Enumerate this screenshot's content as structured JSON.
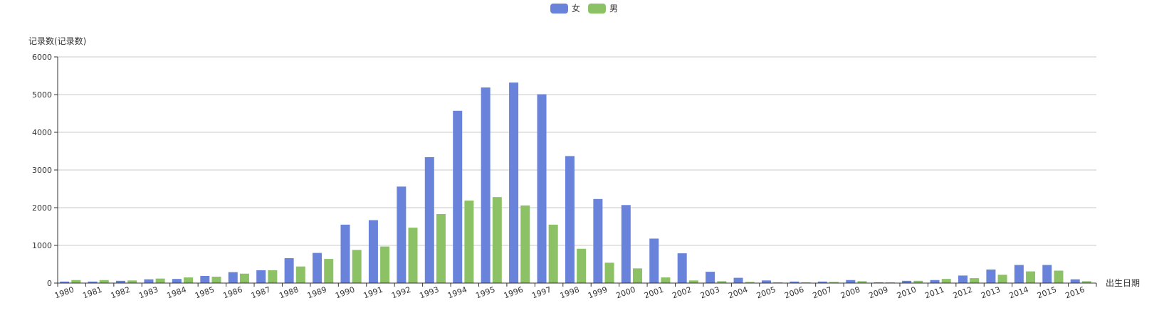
{
  "chart_data": {
    "type": "bar",
    "title": "",
    "xlabel": "出生日期",
    "ylabel": "记录数(记录数)",
    "ylim": [
      0,
      6000
    ],
    "yticks": [
      "0",
      "1000",
      "2000",
      "3000",
      "4000",
      "5000",
      "6000"
    ],
    "grid": true,
    "legend_position": "top-center",
    "categories": [
      "1980",
      "1981",
      "1982",
      "1983",
      "1984",
      "1985",
      "1986",
      "1987",
      "1988",
      "1989",
      "1990",
      "1991",
      "1992",
      "1993",
      "1994",
      "1995",
      "1996",
      "1997",
      "1998",
      "1999",
      "2000",
      "2001",
      "2002",
      "2003",
      "2004",
      "2005",
      "2006",
      "2007",
      "2008",
      "2009",
      "2010",
      "2011",
      "2012",
      "2013",
      "2014",
      "2015",
      "2016"
    ],
    "series": [
      {
        "name": "女",
        "color": "#6983DB",
        "values": [
          40,
          40,
          60,
          100,
          110,
          190,
          290,
          340,
          660,
          800,
          1550,
          1670,
          2560,
          3340,
          4570,
          5190,
          5320,
          5010,
          3370,
          2230,
          2070,
          1180,
          790,
          300,
          140,
          70,
          40,
          40,
          80,
          20,
          60,
          80,
          200,
          360,
          480,
          480,
          100
        ]
      },
      {
        "name": "男",
        "color": "#8CC265",
        "values": [
          80,
          80,
          70,
          120,
          150,
          170,
          250,
          340,
          440,
          640,
          880,
          970,
          1470,
          1830,
          2190,
          2280,
          2060,
          1550,
          910,
          540,
          390,
          150,
          70,
          50,
          30,
          20,
          20,
          30,
          50,
          20,
          60,
          110,
          130,
          220,
          310,
          330,
          50
        ]
      }
    ]
  }
}
